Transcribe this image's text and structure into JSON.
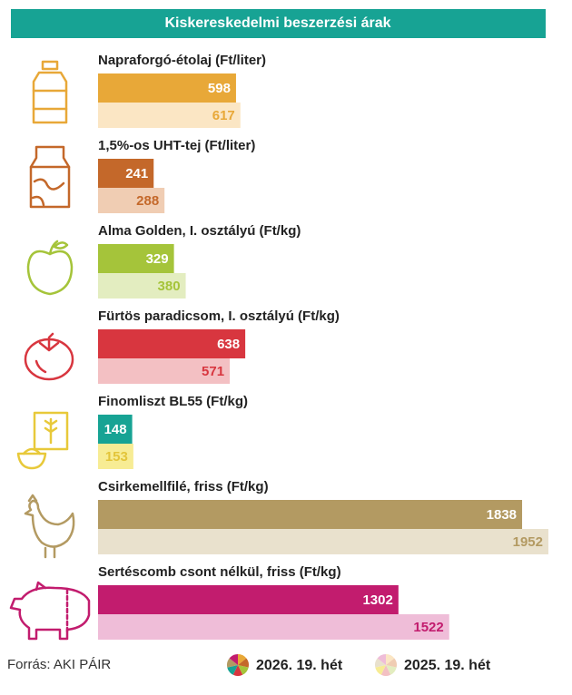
{
  "chart_data": {
    "type": "bar",
    "title": "Kiskereskedelmi beszerzési árak",
    "categories": [
      "Napraforgó-étolaj (Ft/liter)",
      "1,5%-os UHT-tej (Ft/liter)",
      "Alma Golden, I. osztályú (Ft/kg)",
      "Fürtös paradicsom, I. osztályú (Ft/kg)",
      "Finomliszt BL55 (Ft/kg)",
      "Csirkemellfilé, friss (Ft/kg)",
      "Sertéscomb csont nélkül, friss (Ft/kg)"
    ],
    "series": [
      {
        "name": "2026. 19. hét",
        "colors": [
          "#e8a838",
          "#c4682a",
          "#a5c43a",
          "#d8363f",
          "#17a394",
          "#b39a62",
          "#c21c6e"
        ],
        "text_colors": [
          "#ffffff",
          "#ffffff",
          "#ffffff",
          "#ffffff",
          "#ffffff",
          "#ffffff",
          "#ffffff"
        ],
        "values": [
          598,
          241,
          329,
          638,
          148,
          1838,
          1302
        ]
      },
      {
        "name": "2025. 19. hét",
        "colors": [
          "#fbe6c4",
          "#f0cdb3",
          "#e3edc0",
          "#f3c0c3",
          "#f7ec94",
          "#e9e1cd",
          "#efbdd8"
        ],
        "text_colors": [
          "#e8a838",
          "#c4682a",
          "#a5c43a",
          "#d8363f",
          "#e3c53a",
          "#b39a62",
          "#c21c6e"
        ],
        "values": [
          617,
          288,
          380,
          571,
          153,
          1952,
          1522
        ]
      }
    ],
    "source": "Forrás: AKI PÁIR"
  }
}
